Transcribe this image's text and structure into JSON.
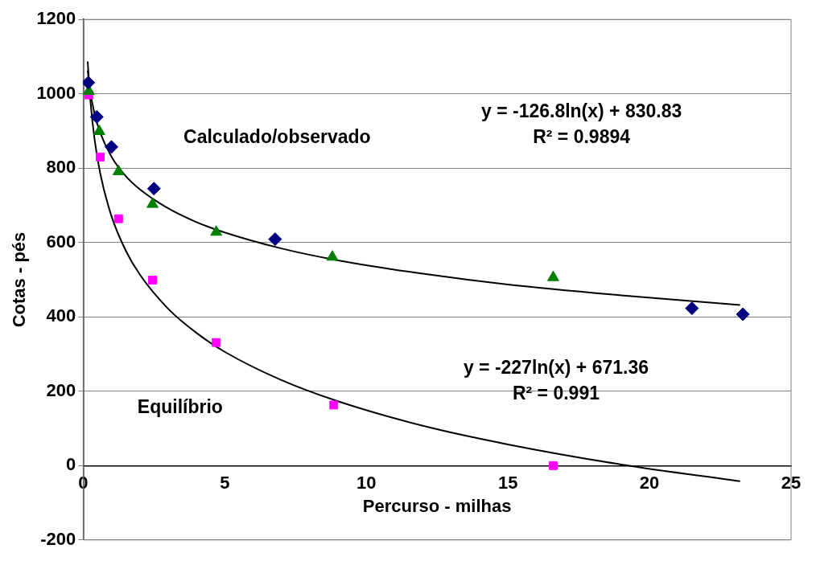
{
  "chart_data": {
    "type": "scatter",
    "xlabel": "Percurso - milhas",
    "ylabel": "Cotas - pés",
    "xlim": [
      0,
      25
    ],
    "ylim": [
      -200,
      1200
    ],
    "xticks": [
      0,
      5,
      10,
      15,
      20,
      25
    ],
    "yticks": [
      -200,
      0,
      200,
      400,
      600,
      800,
      1000,
      1200
    ],
    "grid": "y",
    "legend": false,
    "series": [
      {
        "type": "scatter",
        "marker": "diamond",
        "color": "#000080",
        "x": [
          0.18,
          0.48,
          1.0,
          2.5,
          6.78,
          21.5,
          23.3
        ],
        "values": [
          1030,
          938,
          857,
          745,
          609,
          423,
          407
        ]
      },
      {
        "type": "scatter",
        "marker": "triangle",
        "color": "#008000",
        "x": [
          0.2,
          0.57,
          1.25,
          2.45,
          4.7,
          8.8,
          16.6
        ],
        "values": [
          1007,
          899,
          791,
          703,
          628,
          561,
          506
        ]
      },
      {
        "type": "scatter",
        "marker": "square",
        "color": "#ff00ff",
        "x": [
          0.2,
          0.6,
          1.25,
          2.45,
          4.7,
          8.85,
          16.6
        ],
        "values": [
          997,
          830,
          664,
          499,
          331,
          163,
          0
        ]
      },
      {
        "type": "line",
        "marker": "none",
        "color": "#000000",
        "x": [
          0.16,
          0.25,
          0.4,
          0.6,
          1,
          1.5,
          2,
          3,
          4,
          5,
          7,
          9,
          12,
          15,
          19,
          23.2
        ],
        "values": [
          1063,
          1007,
          947,
          896,
          831,
          779,
          743,
          692,
          655,
          627,
          584,
          552,
          516,
          487,
          458,
          432
        ]
      },
      {
        "type": "line",
        "marker": "none",
        "color": "#000000",
        "x": [
          0.16,
          0.25,
          0.4,
          0.6,
          1,
          1.5,
          2,
          3,
          4,
          5,
          7,
          9,
          12,
          15,
          19,
          23.2
        ],
        "values": [
          1087,
          986,
          879,
          787,
          671,
          579,
          514,
          422,
          357,
          306,
          230,
          173,
          107,
          57,
          3,
          -42
        ]
      }
    ],
    "annotations": [
      "y = -126.8ln(x) + 830.83",
      "R² = 0.9894",
      "Calculado/observado",
      "y = -227ln(x) + 671.36",
      "R² = 0.991",
      "Equilíbrio"
    ]
  }
}
